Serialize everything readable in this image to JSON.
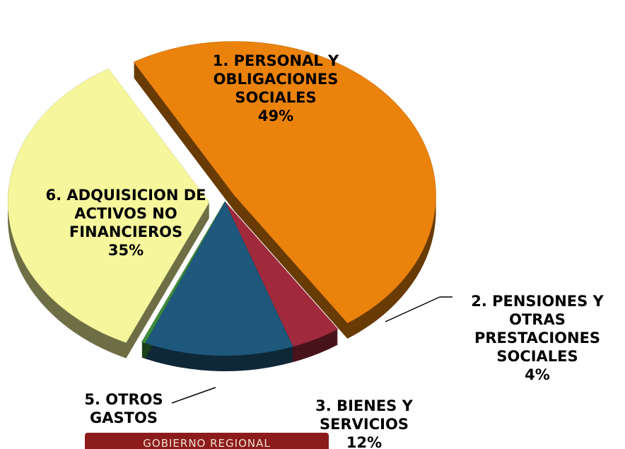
{
  "chart_data": {
    "type": "pie",
    "categories": [
      "1. PERSONAL Y OBLIGACIONES SOCIALES",
      "2. PENSIONES Y OTRAS PRESTACIONES SOCIALES",
      "3. BIENES Y SERVICIOS",
      "5. OTROS GASTOS",
      "6. ADQUISICION DE ACTIVOS NO FINANCIEROS"
    ],
    "values": [
      49,
      4,
      12,
      0.3,
      35
    ],
    "value_labels": [
      "49%",
      "4%",
      "12%",
      null,
      "35%"
    ],
    "colors": [
      "#ea820c",
      "#a02a3c",
      "#1e587c",
      "#3c8c3c",
      "#f6f69c"
    ],
    "banner_text": "GOBIERNO REGIONAL"
  }
}
